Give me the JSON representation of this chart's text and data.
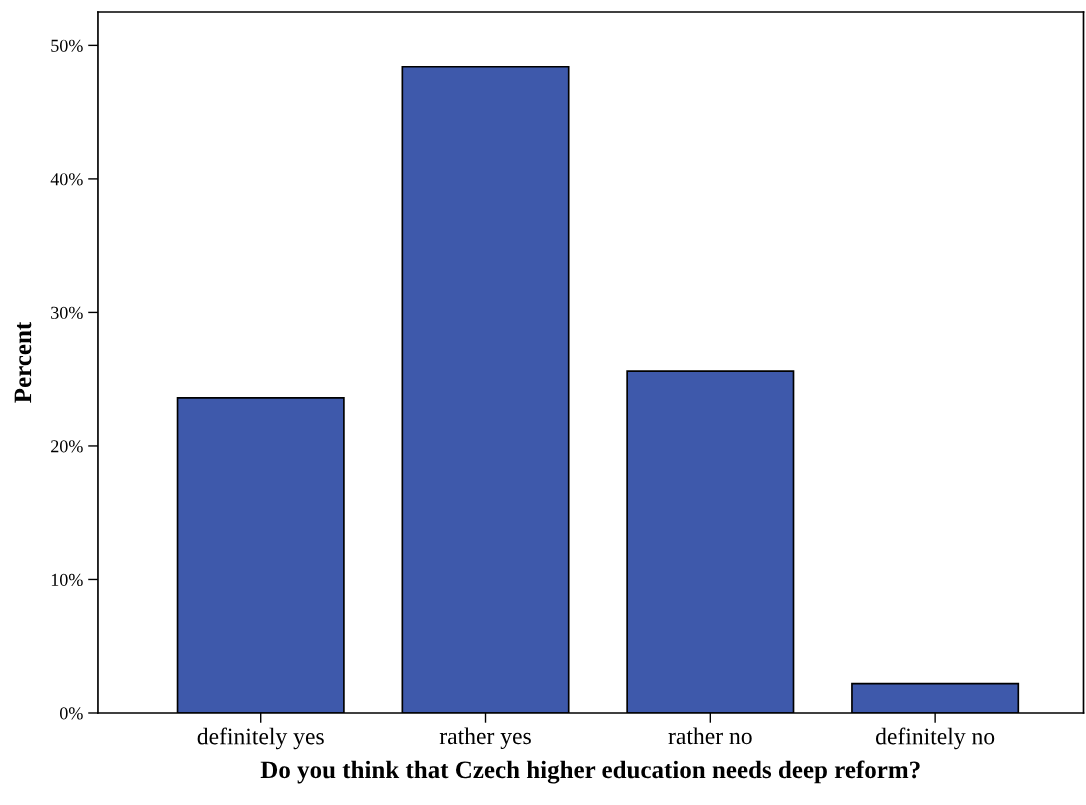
{
  "chart_data": {
    "type": "bar",
    "xlabel": "Do you think that Czech higher education needs deep reform?",
    "ylabel": "Percent",
    "categories": [
      "definitely yes",
      "rather yes",
      "rather no",
      "definitely no"
    ],
    "values": [
      23.6,
      48.4,
      25.6,
      2.2
    ],
    "color": "#3e59ab",
    "ylim": [
      0,
      52.5
    ],
    "yticks": [
      {
        "value": 0,
        "label": "0%"
      },
      {
        "value": 10,
        "label": "10%"
      },
      {
        "value": 20,
        "label": "20%"
      },
      {
        "value": 30,
        "label": "30%"
      },
      {
        "value": 40,
        "label": "40%"
      },
      {
        "value": 50,
        "label": "50%"
      }
    ],
    "grid": false,
    "legend": false
  }
}
